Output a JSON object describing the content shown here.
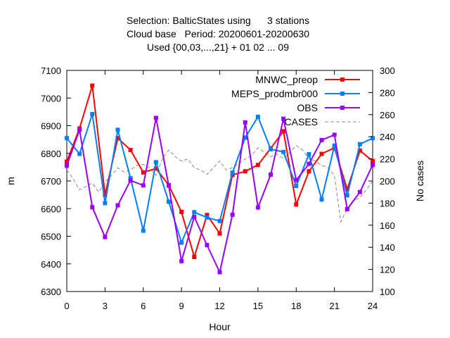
{
  "chart_data": {
    "type": "line",
    "title_lines": [
      "Selection: BalticStates using      3 stations",
      "Cloud base   Period: 20200601-20200630",
      "Used {00,03,...,21} + 01 02 ... 09"
    ],
    "xlabel": "Hour",
    "ylabel": "m",
    "y2label": "No cases",
    "xlim": [
      0,
      24
    ],
    "ylim": [
      6300,
      7100
    ],
    "y2lim": [
      100,
      300
    ],
    "x_ticks": [
      0,
      3,
      6,
      9,
      12,
      15,
      18,
      21,
      24
    ],
    "y_ticks": [
      6300,
      6400,
      6500,
      6600,
      6700,
      6800,
      6900,
      7000,
      7100
    ],
    "y2_ticks": [
      100,
      120,
      140,
      160,
      180,
      200,
      220,
      240,
      260,
      280,
      300
    ],
    "legend_position": "top-right",
    "series": [
      {
        "name": "MNWC_preop",
        "color": "#ff0000",
        "marker": "square",
        "axis": "left",
        "x": [
          0,
          1,
          2,
          3,
          4,
          5,
          6,
          7,
          8,
          9,
          10,
          11,
          12,
          13,
          14,
          15,
          16,
          17,
          18,
          19,
          20,
          21,
          22,
          23,
          24
        ],
        "values": [
          6770,
          6890,
          7045,
          6650,
          6855,
          6812,
          6731,
          6745,
          6685,
          6588,
          6425,
          6577,
          6510,
          6722,
          6735,
          6758,
          6818,
          6880,
          6615,
          6735,
          6798,
          6820,
          6670,
          6810,
          6772
        ]
      },
      {
        "name": "MEPS_prodmbr000",
        "color": "#0080ff",
        "marker": "square",
        "axis": "left",
        "x": [
          0,
          1,
          2,
          3,
          4,
          5,
          6,
          7,
          8,
          9,
          10,
          11,
          12,
          13,
          14,
          15,
          16,
          17,
          18,
          19,
          20,
          21,
          22,
          23,
          24
        ],
        "values": [
          6855,
          6798,
          6942,
          6620,
          6885,
          6710,
          6520,
          6768,
          6625,
          6477,
          6587,
          6568,
          6555,
          6730,
          6857,
          6932,
          6815,
          6805,
          6682,
          6797,
          6633,
          6828,
          6648,
          6833,
          6855
        ]
      },
      {
        "name": "OBS",
        "color": "#9900ff",
        "marker": "square",
        "axis": "left",
        "x": [
          0,
          1,
          2,
          3,
          4,
          5,
          6,
          7,
          8,
          9,
          10,
          11,
          12,
          13,
          14,
          15,
          16,
          17,
          18,
          19,
          20,
          21,
          22,
          23,
          24
        ],
        "values": [
          6755,
          6885,
          6605,
          6497,
          6612,
          6702,
          6684,
          6928,
          6683,
          6410,
          6570,
          6468,
          6370,
          6578,
          6912,
          6604,
          6723,
          6925,
          6703,
          6762,
          6848,
          6867,
          6598,
          6660,
          6758
        ]
      },
      {
        "name": "CASES",
        "color": "#888888",
        "marker": "none",
        "dash": true,
        "axis": "right",
        "x": [
          0,
          0.5,
          1,
          1.5,
          2,
          2.5,
          3,
          3.5,
          4,
          4.5,
          5,
          5.5,
          6,
          6.5,
          7,
          7.5,
          8,
          8.5,
          9,
          9.5,
          10,
          10.5,
          11,
          11.5,
          12,
          12.5,
          13,
          13.5,
          14,
          14.5,
          15,
          15.5,
          16,
          16.5,
          17,
          17.5,
          18,
          18.5,
          19,
          19.5,
          20,
          20.5,
          21,
          21.5,
          22,
          22.5,
          23,
          23.5,
          24
        ],
        "values": [
          210,
          202,
          192,
          195,
          198,
          190,
          199,
          205,
          212,
          208,
          210,
          214,
          215,
          212,
          205,
          220,
          228,
          222,
          218,
          220,
          212,
          210,
          206,
          212,
          218,
          210,
          212,
          216,
          220,
          223,
          230,
          226,
          222,
          224,
          220,
          226,
          232,
          228,
          220,
          218,
          214,
          212,
          205,
          163,
          175,
          182,
          185,
          192,
          200
        ]
      }
    ]
  }
}
